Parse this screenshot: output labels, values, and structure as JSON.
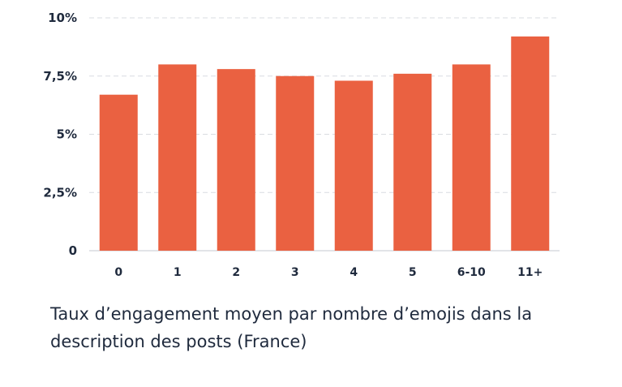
{
  "chart_data": {
    "type": "bar",
    "title": "Taux d’engagement moyen par nombre d’emojis dans la description des posts (France)",
    "xlabel": "",
    "ylabel": "",
    "ylim": [
      0,
      10
    ],
    "yticks": [
      {
        "value": 0,
        "label": "0"
      },
      {
        "value": 2.5,
        "label": "2,5%"
      },
      {
        "value": 5,
        "label": "5%"
      },
      {
        "value": 7.5,
        "label": "7,5%"
      },
      {
        "value": 10,
        "label": "10%"
      }
    ],
    "categories": [
      "0",
      "1",
      "2",
      "3",
      "4",
      "5",
      "6-10",
      "11+"
    ],
    "values": [
      6.7,
      8.0,
      7.8,
      7.5,
      7.3,
      7.6,
      8.0,
      9.2
    ],
    "grid": true,
    "bar_color": "#ea6141",
    "grid_color": "#d9dce1",
    "text_color": "#1f2a3d"
  }
}
